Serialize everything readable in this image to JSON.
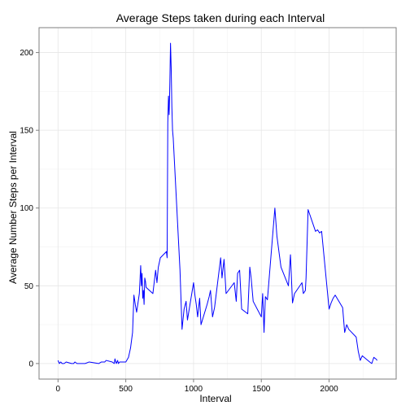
{
  "chart_data": {
    "type": "line",
    "title": "Average Steps taken during each Interval",
    "xlabel": "Interval",
    "ylabel": "Average Number Steps per Interval",
    "xlim": [
      -140,
      2495
    ],
    "ylim": [
      -10,
      216
    ],
    "x_ticks": [
      0,
      500,
      1000,
      1500,
      2000
    ],
    "x_tick_labels": [
      "0",
      "500",
      "1000",
      "1500",
      "2000"
    ],
    "y_ticks": [
      0,
      50,
      100,
      150,
      200
    ],
    "y_tick_labels": [
      "0",
      "50",
      "100",
      "150",
      "200"
    ],
    "grid": true,
    "line_color": "#0000ff",
    "series": [
      {
        "x": [
          0,
          10,
          20,
          30,
          45,
          60,
          100,
          115,
          125,
          140,
          200,
          230,
          300,
          320,
          345,
          355,
          400,
          415,
          420,
          430,
          440,
          445,
          455,
          500,
          520,
          535,
          550,
          560,
          570,
          580,
          600,
          610,
          615,
          620,
          625,
          630,
          635,
          640,
          645,
          650,
          700,
          720,
          730,
          740,
          755,
          800,
          805,
          810,
          815,
          820,
          825,
          830,
          835,
          840,
          845,
          850,
          900,
          915,
          930,
          945,
          955,
          1000,
          1010,
          1020,
          1030,
          1045,
          1055,
          1100,
          1115,
          1125,
          1140,
          1155,
          1200,
          1210,
          1225,
          1240,
          1300,
          1315,
          1325,
          1340,
          1355,
          1400,
          1415,
          1425,
          1440,
          1500,
          1510,
          1520,
          1530,
          1545,
          1600,
          1615,
          1630,
          1645,
          1700,
          1715,
          1730,
          1745,
          1800,
          1810,
          1825,
          1830,
          1845,
          1900,
          1915,
          1930,
          1945,
          2000,
          2015,
          2030,
          2045,
          2100,
          2115,
          2130,
          2145,
          2200,
          2215,
          2230,
          2245,
          2300,
          2315,
          2330,
          2345,
          2355
        ],
        "y": [
          2,
          0,
          1,
          0,
          0,
          1,
          0,
          0,
          1,
          0,
          0,
          1,
          0,
          1,
          1,
          2,
          1,
          0,
          3,
          0,
          2,
          0,
          1,
          1,
          4,
          10,
          20,
          44,
          38,
          33,
          45,
          63,
          50,
          58,
          42,
          47,
          38,
          55,
          53,
          49,
          45,
          60,
          52,
          62,
          68,
          72,
          68,
          155,
          172,
          160,
          180,
          206,
          190,
          165,
          150,
          145,
          60,
          22,
          35,
          40,
          28,
          52,
          44,
          38,
          30,
          42,
          25,
          38,
          43,
          47,
          30,
          36,
          68,
          55,
          67,
          45,
          52,
          40,
          58,
          60,
          35,
          32,
          62,
          55,
          40,
          30,
          45,
          20,
          43,
          41,
          100,
          82,
          72,
          62,
          50,
          70,
          39,
          45,
          52,
          45,
          47,
          55,
          99,
          85,
          86,
          84,
          85,
          35,
          39,
          42,
          44,
          36,
          20,
          25,
          22,
          17,
          8,
          2,
          5,
          1,
          0,
          4,
          3,
          2
        ]
      }
    ]
  }
}
